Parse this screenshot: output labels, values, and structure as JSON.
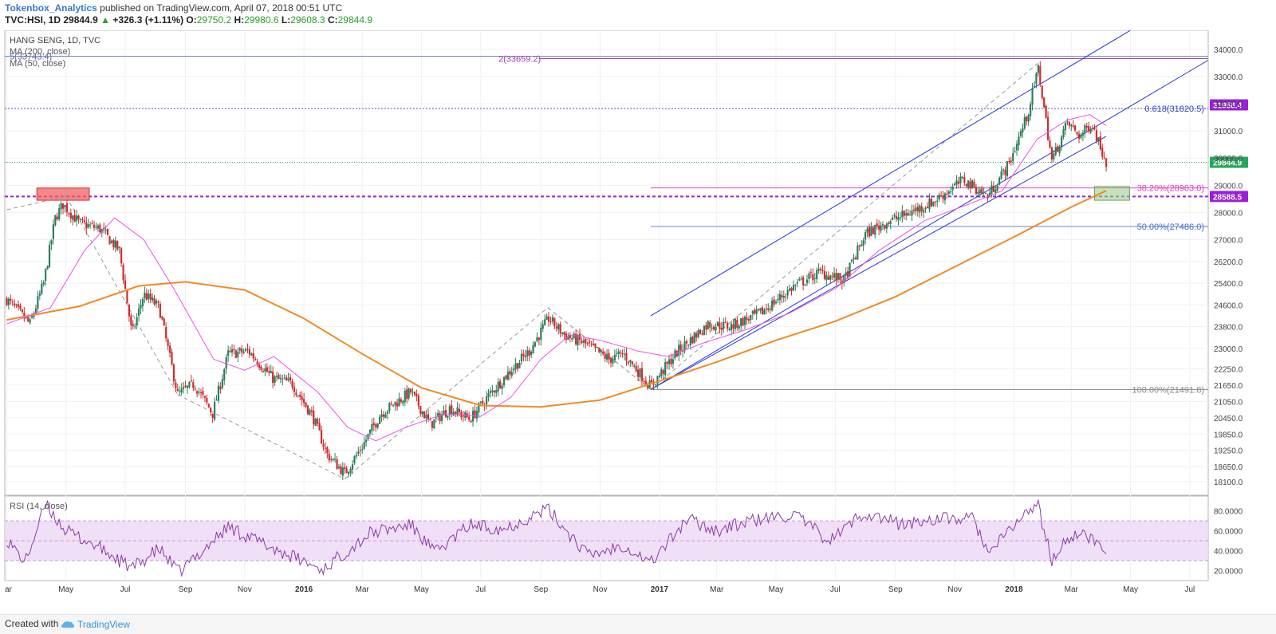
{
  "header": {
    "author": "Tokenbox_Analytics",
    "published": "published on TradingView.com, April 07, 2018 00:51 UTC",
    "symbol": "TVC:HSI, 1D",
    "last": "29844.9",
    "arrow": "▲",
    "change": "+326.3 (+1.11%)",
    "o_label": "O:",
    "o": "29750.2",
    "h_label": "H:",
    "h": "29980.6",
    "l_label": "L:",
    "l": "29608.3",
    "c_label": "C:",
    "c": "29844.9"
  },
  "legend": {
    "title": "HANG SENG, 1D, TVC",
    "ma200": "MA (200, close)",
    "ma50": "MA (50, close)",
    "rsi": "RSI (14, close)"
  },
  "footer": {
    "created": "Created with",
    "brand": "TradingView"
  },
  "colors": {
    "up": "#2e7d5a",
    "down": "#d02c2c",
    "ma200": "#f08a24",
    "ma50": "#ef53e4",
    "channel": "#2434d8",
    "fib_pink": "#e040c0",
    "fib_blue": "#3a6fd8",
    "rsi_line": "#8a3aa8",
    "level_purple": "#9b1fd8",
    "price_badge": "#26a65b"
  },
  "chart_data": {
    "type": "candlestick",
    "title": "HANG SENG, 1D, TVC",
    "x_tick_labels": [
      "ar",
      "May",
      "Jul",
      "Sep",
      "Nov",
      "2016",
      "Mar",
      "May",
      "Jul",
      "Sep",
      "Nov",
      "2017",
      "Mar",
      "May",
      "Jul",
      "Sep",
      "Nov",
      "2018",
      "Mar",
      "May",
      "Jul"
    ],
    "y_tick_labels": [
      "34000.0",
      "33000.0",
      "32000.0",
      "31000.0",
      "30000.0",
      "29000.0",
      "28000.0",
      "27000.0",
      "26200.0",
      "25400.0",
      "24600.0",
      "23800.0",
      "23000.0",
      "22250.0",
      "21650.0",
      "21050.0",
      "20450.0",
      "19850.0",
      "19250.0",
      "18650.0",
      "18100.0"
    ],
    "ylim": [
      17600,
      34700
    ],
    "price_path": [
      {
        "date": "2015-03-01",
        "close": 24800
      },
      {
        "date": "2015-03-25",
        "close": 23900
      },
      {
        "date": "2015-04-08",
        "close": 25400
      },
      {
        "date": "2015-04-20",
        "close": 27800
      },
      {
        "date": "2015-04-28",
        "close": 28300
      },
      {
        "date": "2015-05-15",
        "close": 27600
      },
      {
        "date": "2015-06-05",
        "close": 27400
      },
      {
        "date": "2015-06-25",
        "close": 26600
      },
      {
        "date": "2015-07-08",
        "close": 23500
      },
      {
        "date": "2015-07-20",
        "close": 25000
      },
      {
        "date": "2015-08-05",
        "close": 24500
      },
      {
        "date": "2015-08-24",
        "close": 21300
      },
      {
        "date": "2015-09-10",
        "close": 21700
      },
      {
        "date": "2015-09-29",
        "close": 20600
      },
      {
        "date": "2015-10-15",
        "close": 22800
      },
      {
        "date": "2015-11-05",
        "close": 22900
      },
      {
        "date": "2015-11-30",
        "close": 21900
      },
      {
        "date": "2015-12-20",
        "close": 21700
      },
      {
        "date": "2016-01-10",
        "close": 20500
      },
      {
        "date": "2016-01-25",
        "close": 19100
      },
      {
        "date": "2016-02-12",
        "close": 18400
      },
      {
        "date": "2016-03-01",
        "close": 19400
      },
      {
        "date": "2016-03-20",
        "close": 20600
      },
      {
        "date": "2016-04-20",
        "close": 21400
      },
      {
        "date": "2016-05-10",
        "close": 20200
      },
      {
        "date": "2016-05-30",
        "close": 20800
      },
      {
        "date": "2016-06-20",
        "close": 20400
      },
      {
        "date": "2016-07-10",
        "close": 21300
      },
      {
        "date": "2016-08-01",
        "close": 22200
      },
      {
        "date": "2016-08-20",
        "close": 22900
      },
      {
        "date": "2016-09-09",
        "close": 24100
      },
      {
        "date": "2016-09-25",
        "close": 23500
      },
      {
        "date": "2016-10-15",
        "close": 23200
      },
      {
        "date": "2016-11-10",
        "close": 22600
      },
      {
        "date": "2016-11-25",
        "close": 22800
      },
      {
        "date": "2016-12-23",
        "close": 21600
      },
      {
        "date": "2017-01-20",
        "close": 22900
      },
      {
        "date": "2017-02-20",
        "close": 23900
      },
      {
        "date": "2017-03-15",
        "close": 23800
      },
      {
        "date": "2017-04-15",
        "close": 24300
      },
      {
        "date": "2017-05-20",
        "close": 25300
      },
      {
        "date": "2017-06-15",
        "close": 25800
      },
      {
        "date": "2017-07-10",
        "close": 25500
      },
      {
        "date": "2017-08-01",
        "close": 27200
      },
      {
        "date": "2017-08-20",
        "close": 27600
      },
      {
        "date": "2017-09-10",
        "close": 27900
      },
      {
        "date": "2017-10-10",
        "close": 28400
      },
      {
        "date": "2017-11-10",
        "close": 29200
      },
      {
        "date": "2017-12-05",
        "close": 28600
      },
      {
        "date": "2017-12-27",
        "close": 29800
      },
      {
        "date": "2018-01-15",
        "close": 31600
      },
      {
        "date": "2018-01-26",
        "close": 33300
      },
      {
        "date": "2018-02-09",
        "close": 29900
      },
      {
        "date": "2018-02-25",
        "close": 31300
      },
      {
        "date": "2018-03-10",
        "close": 30800
      },
      {
        "date": "2018-03-22",
        "close": 31300
      },
      {
        "date": "2018-04-06",
        "close": 29844.9
      }
    ],
    "ma200_path": [
      {
        "date": "2015-03-01",
        "value": 24050
      },
      {
        "date": "2015-05-15",
        "value": 24550
      },
      {
        "date": "2015-07-15",
        "value": 25300
      },
      {
        "date": "2015-09-01",
        "value": 25450
      },
      {
        "date": "2015-11-01",
        "value": 25150
      },
      {
        "date": "2016-01-01",
        "value": 24100
      },
      {
        "date": "2016-03-01",
        "value": 22800
      },
      {
        "date": "2016-05-01",
        "value": 21550
      },
      {
        "date": "2016-07-01",
        "value": 20900
      },
      {
        "date": "2016-09-01",
        "value": 20850
      },
      {
        "date": "2016-11-01",
        "value": 21100
      },
      {
        "date": "2017-01-01",
        "value": 21800
      },
      {
        "date": "2017-03-01",
        "value": 22500
      },
      {
        "date": "2017-05-01",
        "value": 23300
      },
      {
        "date": "2017-07-01",
        "value": 24000
      },
      {
        "date": "2017-09-01",
        "value": 24900
      },
      {
        "date": "2017-11-01",
        "value": 26000
      },
      {
        "date": "2018-01-01",
        "value": 27100
      },
      {
        "date": "2018-03-01",
        "value": 28200
      },
      {
        "date": "2018-04-06",
        "value": 28800
      }
    ],
    "ma50_path": [
      {
        "date": "2015-03-01",
        "value": 23900
      },
      {
        "date": "2015-04-15",
        "value": 24500
      },
      {
        "date": "2015-05-20",
        "value": 26600
      },
      {
        "date": "2015-06-20",
        "value": 27800
      },
      {
        "date": "2015-07-20",
        "value": 27000
      },
      {
        "date": "2015-08-20",
        "value": 25200
      },
      {
        "date": "2015-09-30",
        "value": 22600
      },
      {
        "date": "2015-11-01",
        "value": 22200
      },
      {
        "date": "2015-12-01",
        "value": 22700
      },
      {
        "date": "2016-01-15",
        "value": 21400
      },
      {
        "date": "2016-02-15",
        "value": 20100
      },
      {
        "date": "2016-03-15",
        "value": 19600
      },
      {
        "date": "2016-04-15",
        "value": 20100
      },
      {
        "date": "2016-05-25",
        "value": 20600
      },
      {
        "date": "2016-07-01",
        "value": 20500
      },
      {
        "date": "2016-08-01",
        "value": 21200
      },
      {
        "date": "2016-09-01",
        "value": 22600
      },
      {
        "date": "2016-10-01",
        "value": 23500
      },
      {
        "date": "2016-11-01",
        "value": 23300
      },
      {
        "date": "2016-12-10",
        "value": 22900
      },
      {
        "date": "2017-01-10",
        "value": 22700
      },
      {
        "date": "2017-02-15",
        "value": 23200
      },
      {
        "date": "2017-04-01",
        "value": 23700
      },
      {
        "date": "2017-05-15",
        "value": 24300
      },
      {
        "date": "2017-07-01",
        "value": 25200
      },
      {
        "date": "2017-08-15",
        "value": 26600
      },
      {
        "date": "2017-10-01",
        "value": 27700
      },
      {
        "date": "2017-11-15",
        "value": 28300
      },
      {
        "date": "2017-12-20",
        "value": 28800
      },
      {
        "date": "2018-01-25",
        "value": 30700
      },
      {
        "date": "2018-02-25",
        "value": 31400
      },
      {
        "date": "2018-03-20",
        "value": 31600
      },
      {
        "date": "2018-04-06",
        "value": 31200
      }
    ],
    "rsi_path": [
      {
        "date": "2015-03-01",
        "value": 52
      },
      {
        "date": "2015-03-20",
        "value": 28
      },
      {
        "date": "2015-04-10",
        "value": 86
      },
      {
        "date": "2015-05-01",
        "value": 60
      },
      {
        "date": "2015-06-01",
        "value": 45
      },
      {
        "date": "2015-07-08",
        "value": 22
      },
      {
        "date": "2015-08-05",
        "value": 42
      },
      {
        "date": "2015-08-25",
        "value": 18
      },
      {
        "date": "2015-10-15",
        "value": 64
      },
      {
        "date": "2015-12-01",
        "value": 42
      },
      {
        "date": "2016-01-20",
        "value": 21
      },
      {
        "date": "2016-03-10",
        "value": 58
      },
      {
        "date": "2016-04-20",
        "value": 66
      },
      {
        "date": "2016-05-15",
        "value": 38
      },
      {
        "date": "2016-06-20",
        "value": 66
      },
      {
        "date": "2016-07-25",
        "value": 62
      },
      {
        "date": "2016-09-08",
        "value": 82
      },
      {
        "date": "2016-10-20",
        "value": 35
      },
      {
        "date": "2016-11-25",
        "value": 46
      },
      {
        "date": "2016-12-23",
        "value": 28
      },
      {
        "date": "2017-01-30",
        "value": 72
      },
      {
        "date": "2017-03-01",
        "value": 60
      },
      {
        "date": "2017-04-05",
        "value": 70
      },
      {
        "date": "2017-05-20",
        "value": 76
      },
      {
        "date": "2017-06-25",
        "value": 50
      },
      {
        "date": "2017-07-30",
        "value": 78
      },
      {
        "date": "2017-09-10",
        "value": 66
      },
      {
        "date": "2017-10-10",
        "value": 72
      },
      {
        "date": "2017-11-20",
        "value": 72
      },
      {
        "date": "2017-12-07",
        "value": 36
      },
      {
        "date": "2017-12-28",
        "value": 62
      },
      {
        "date": "2018-01-25",
        "value": 88
      },
      {
        "date": "2018-02-09",
        "value": 30
      },
      {
        "date": "2018-03-01",
        "value": 56
      },
      {
        "date": "2018-03-20",
        "value": 54
      },
      {
        "date": "2018-04-06",
        "value": 38
      }
    ],
    "rsi_ylim": [
      10,
      95
    ],
    "rsi_band": [
      30,
      70
    ],
    "rsi_tick_labels": [
      "80.0000",
      "60.0000",
      "40.0000",
      "20.0000"
    ],
    "levels": {
      "ext_2": {
        "label": "2(33659.2)",
        "value": 33659.2
      },
      "ext_5": {
        "label": "5(33743.4)",
        "value": 33743.4
      },
      "fib_0618": {
        "label": "0.618(31820.5)",
        "value": 31820.5
      },
      "fib_382": {
        "label": "38.20%(28903.0)",
        "value": 28903.0
      },
      "fib_50": {
        "label": "50.00%(27486.0)",
        "value": 27486.0
      },
      "fib_100": {
        "label": "100.00%(21491.8)",
        "value": 21491.8
      },
      "support": {
        "value": 28588.5
      }
    },
    "price_badges": [
      {
        "label": "31958.4",
        "value": 31958.4
      },
      {
        "label": "29844.9",
        "value": 29844.9
      },
      {
        "label": "28588.5",
        "value": 28588.5
      }
    ],
    "channel": {
      "upper_start": {
        "date": "2016-12-23",
        "value": 24200
      },
      "upper_end": {
        "date": "2018-05-01",
        "value": 34700
      },
      "lower_start": {
        "date": "2016-12-23",
        "value": 21491.8
      },
      "lower_end": {
        "date": "2018-04-06",
        "value": 30800
      },
      "third_end": {
        "date": "2018-07-20",
        "value": 33600
      }
    },
    "resistance_box": {
      "from": "2015-04-01",
      "to": "2015-05-25",
      "top": 28900,
      "bottom": 28450
    },
    "target_box": {
      "from": "2018-03-25",
      "to": "2018-04-30",
      "top": 28950,
      "bottom": 28450
    },
    "dashed_swings": [
      {
        "date": "2015-03-01",
        "value": 28100
      },
      {
        "date": "2015-05-01",
        "value": 28600
      },
      {
        "date": "2016-02-12",
        "value": 18200
      },
      {
        "date": "2016-09-08",
        "value": 24500
      },
      {
        "date": "2016-12-23",
        "value": 21491.8
      },
      {
        "date": "2018-01-26",
        "value": 33500
      }
    ]
  }
}
